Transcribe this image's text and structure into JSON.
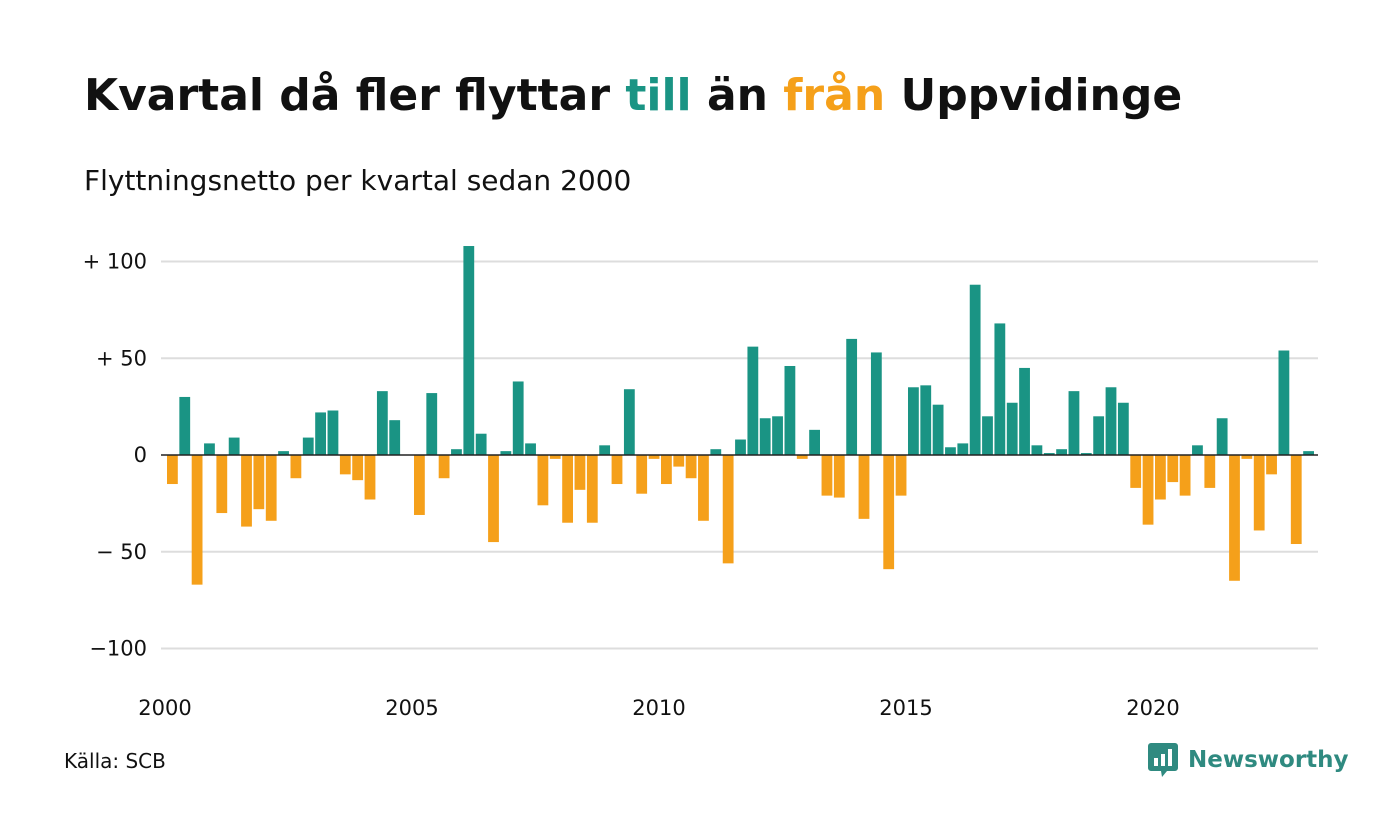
{
  "header": {
    "title_parts": [
      "Kvartal då fler flyttar ",
      "till",
      " än ",
      "från",
      " Uppvidinge"
    ],
    "subtitle": "Flyttningsnetto per kvartal sedan 2000"
  },
  "footer": {
    "source": "Källa: SCB",
    "brand": "Newsworthy"
  },
  "colors": {
    "positive": "#1a9484",
    "negative": "#f5a01a",
    "grid": "#dddddd",
    "text": "#111111",
    "brand": "#2f8a80"
  },
  "chart_data": {
    "type": "bar",
    "title": "Kvartal då fler flyttar till än från Uppvidinge",
    "subtitle": "Flyttningsnetto per kvartal sedan 2000",
    "xlabel": "",
    "ylabel": "",
    "x_start_year": 2000,
    "quarters_per_year": 4,
    "values": [
      -15,
      30,
      -67,
      6,
      -30,
      9,
      -37,
      -28,
      -34,
      2,
      -12,
      9,
      22,
      23,
      -10,
      -13,
      -23,
      33,
      18,
      0,
      -31,
      32,
      -12,
      3,
      108,
      11,
      -45,
      2,
      38,
      6,
      -26,
      -2,
      -35,
      -18,
      -35,
      5,
      -15,
      34,
      -20,
      -2,
      -15,
      -6,
      -12,
      -34,
      3,
      -56,
      8,
      56,
      19,
      20,
      46,
      -2,
      13,
      -21,
      -22,
      60,
      -33,
      53,
      -59,
      -21,
      35,
      36,
      26,
      4,
      6,
      88,
      20,
      68,
      27,
      45,
      5,
      1,
      3,
      33,
      1,
      20,
      35,
      27,
      -17,
      -36,
      -23,
      -14,
      -21,
      5,
      -17,
      19,
      -65,
      -2,
      -39,
      -10,
      54,
      -46,
      2
    ],
    "ylim": [
      -110,
      110
    ],
    "y_ticks": [
      100,
      50,
      0,
      -50,
      -100
    ],
    "y_tick_labels": [
      "+ 100",
      "+  50",
      "0",
      "− 50",
      "−100"
    ],
    "x_ticks": [
      2000,
      2005,
      2010,
      2015,
      2020
    ],
    "x_tick_labels": [
      "2000",
      "2005",
      "2010",
      "2015",
      "2020"
    ],
    "grid": true,
    "legend": "none"
  }
}
